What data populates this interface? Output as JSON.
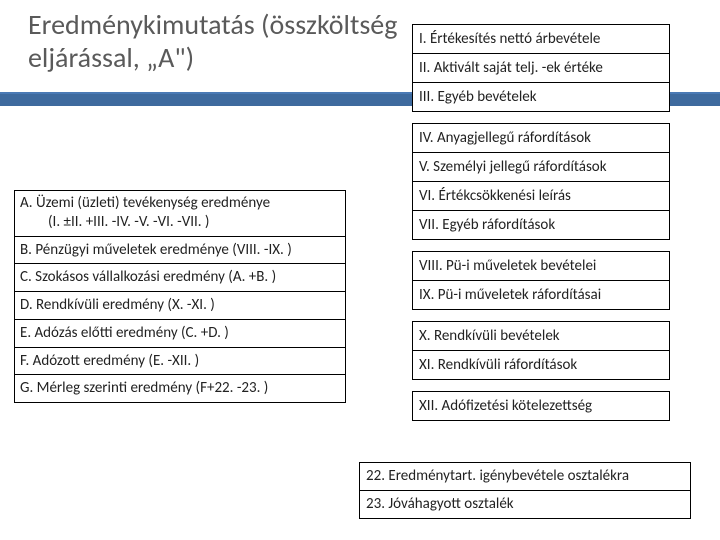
{
  "title": "Eredménykimutatás (összköltség eljárással, „A\")",
  "accent_color": "#3e6a9e",
  "left": [
    {
      "label": "A.  Üzemi (üzleti) tevékenység eredménye",
      "sub": "(I. ±II. +III. -IV. -V. -VI. -VII. )",
      "tall": true
    },
    {
      "label": "B. Pénzügyi műveletek eredménye (VIII. -IX. )"
    },
    {
      "label": "C. Szokásos vállalkozási  eredmény (A. +B. )"
    },
    {
      "label": "D. Rendkívüli eredmény (X. -XI. )"
    },
    {
      "label": "E. Adózás előtti eredmény (C. +D. )"
    },
    {
      "label": "F. Adózott eredmény (E. -XII. )"
    },
    {
      "label": "G. Mérleg szerinti eredmény (F+22. -23. )"
    }
  ],
  "right_groups": [
    [
      "I. Értékesítés nettó árbevétele",
      "II. Aktivált saját telj. -ek értéke",
      "III. Egyéb bevételek"
    ],
    [
      "IV. Anyagjellegű ráfordítások",
      "V. Személyi jellegű ráfordítások",
      "VI. Értékcsökkenési leírás",
      "VII. Egyéb ráfordítások"
    ],
    [
      "VIII. Pü-i műveletek bevételei",
      "IX. Pü-i műveletek ráfordításai"
    ],
    [
      "X. Rendkívüli bevételek",
      "XI. Rendkívüli ráfordítások"
    ],
    [
      "XII. Adófizetési kötelezettség"
    ]
  ],
  "bottom": [
    "22. Eredménytart. igénybevétele osztalékra",
    "23. Jóváhagyott osztalék"
  ]
}
